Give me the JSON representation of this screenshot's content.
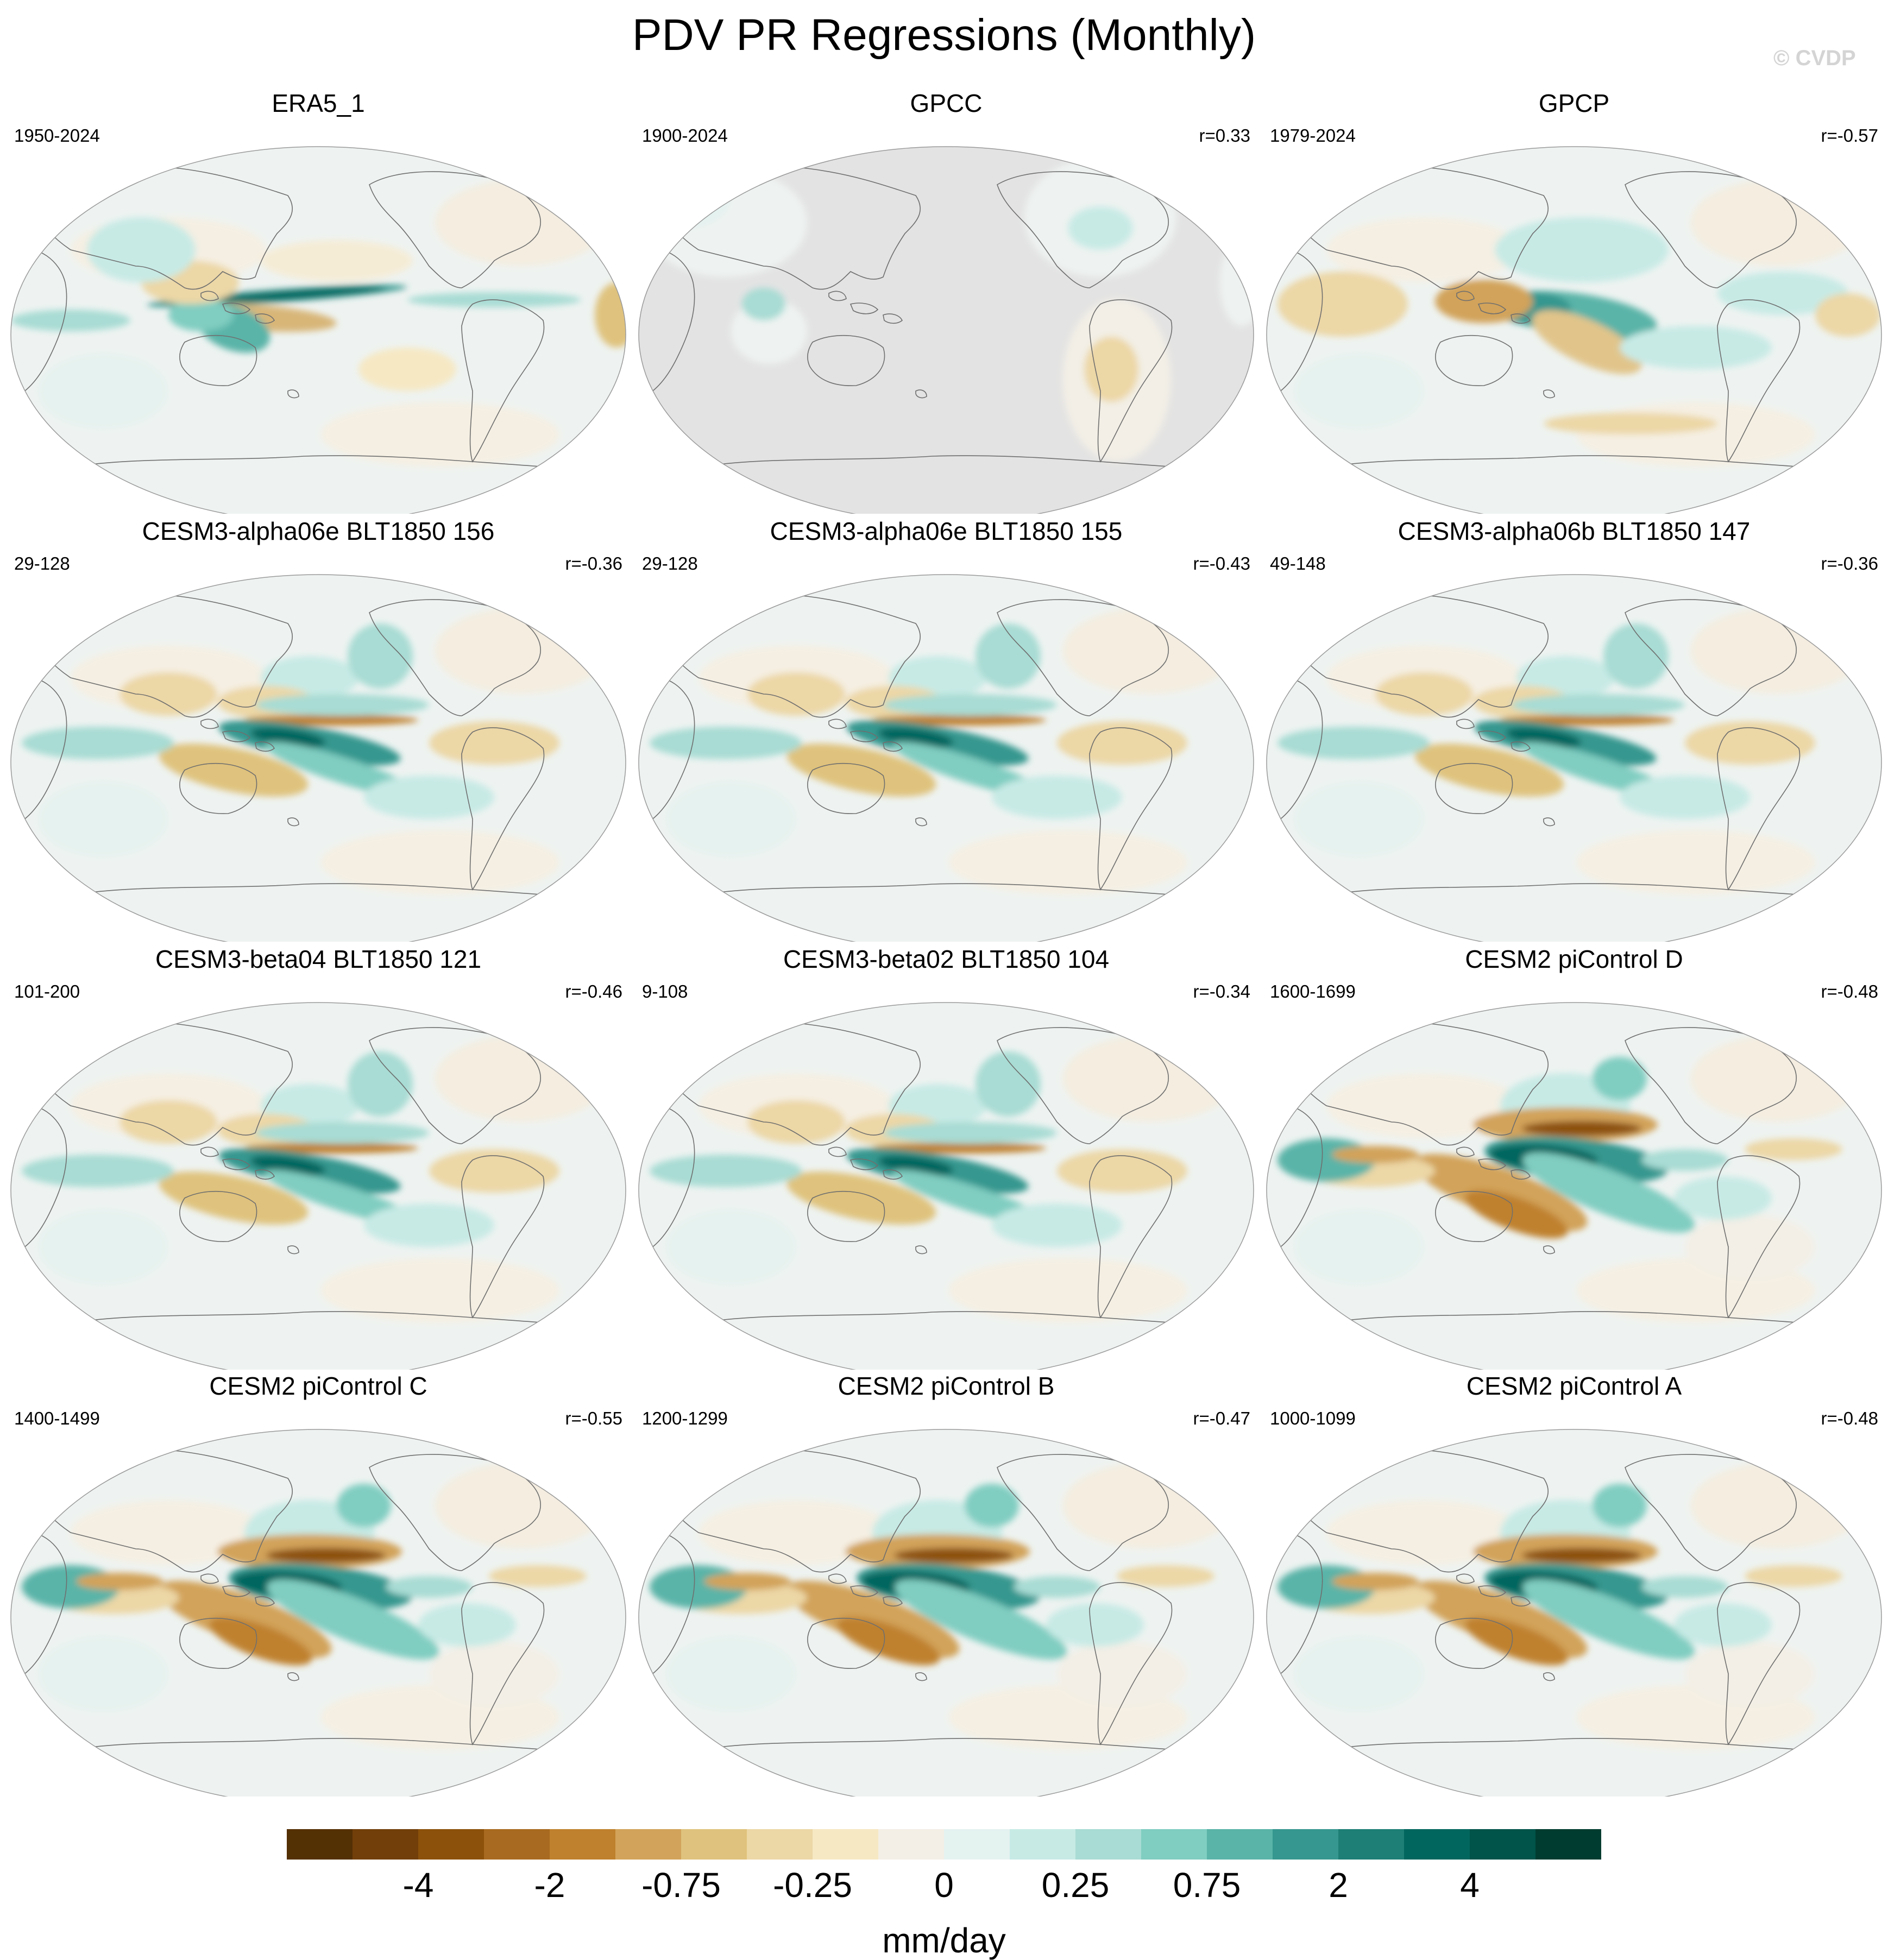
{
  "title": "PDV PR Regressions (Monthly)",
  "watermark": "© CVDP",
  "colorbar": {
    "units": "mm/day",
    "colors": [
      "#543005",
      "#723f0a",
      "#8c510a",
      "#a86a20",
      "#bf812d",
      "#d2a35a",
      "#dfc27d",
      "#ecd7a6",
      "#f6e8c3",
      "#f3efe6",
      "#e4f2f0",
      "#c7eae5",
      "#a8dcd4",
      "#80cdc1",
      "#5ab4a8",
      "#35978f",
      "#1d7f76",
      "#01665e",
      "#00544a",
      "#003c30"
    ],
    "labels": [
      "-4",
      "-2",
      "-0.75",
      "-0.25",
      "0",
      "0.25",
      "0.75",
      "2",
      "4"
    ]
  },
  "panels": [
    {
      "title": "ERA5_1",
      "years": "1950-2024",
      "corr": "",
      "pattern": "era5"
    },
    {
      "title": "GPCC",
      "years": "1900-2024",
      "corr": "r=0.33",
      "pattern": "gpcc"
    },
    {
      "title": "GPCP",
      "years": "1979-2024",
      "corr": "r=-0.57",
      "pattern": "gpcp"
    },
    {
      "title": "CESM3-alpha06e BLT1850 156",
      "years": "29-128",
      "corr": "r=-0.36",
      "pattern": "model"
    },
    {
      "title": "CESM3-alpha06e BLT1850 155",
      "years": "29-128",
      "corr": "r=-0.43",
      "pattern": "model"
    },
    {
      "title": "CESM3-alpha06b BLT1850 147",
      "years": "49-148",
      "corr": "r=-0.36",
      "pattern": "model"
    },
    {
      "title": "CESM3-beta04 BLT1850 121",
      "years": "101-200",
      "corr": "r=-0.46",
      "pattern": "model"
    },
    {
      "title": "CESM3-beta02 BLT1850 104",
      "years": "9-108",
      "corr": "r=-0.34",
      "pattern": "model"
    },
    {
      "title": "CESM2 piControl D",
      "years": "1600-1699",
      "corr": "r=-0.48",
      "pattern": "strong"
    },
    {
      "title": "CESM2 piControl C",
      "years": "1400-1499",
      "corr": "r=-0.55",
      "pattern": "strong"
    },
    {
      "title": "CESM2 piControl B",
      "years": "1200-1299",
      "corr": "r=-0.47",
      "pattern": "strong"
    },
    {
      "title": "CESM2 piControl A",
      "years": "1000-1099",
      "corr": "r=-0.48",
      "pattern": "strong"
    }
  ]
}
